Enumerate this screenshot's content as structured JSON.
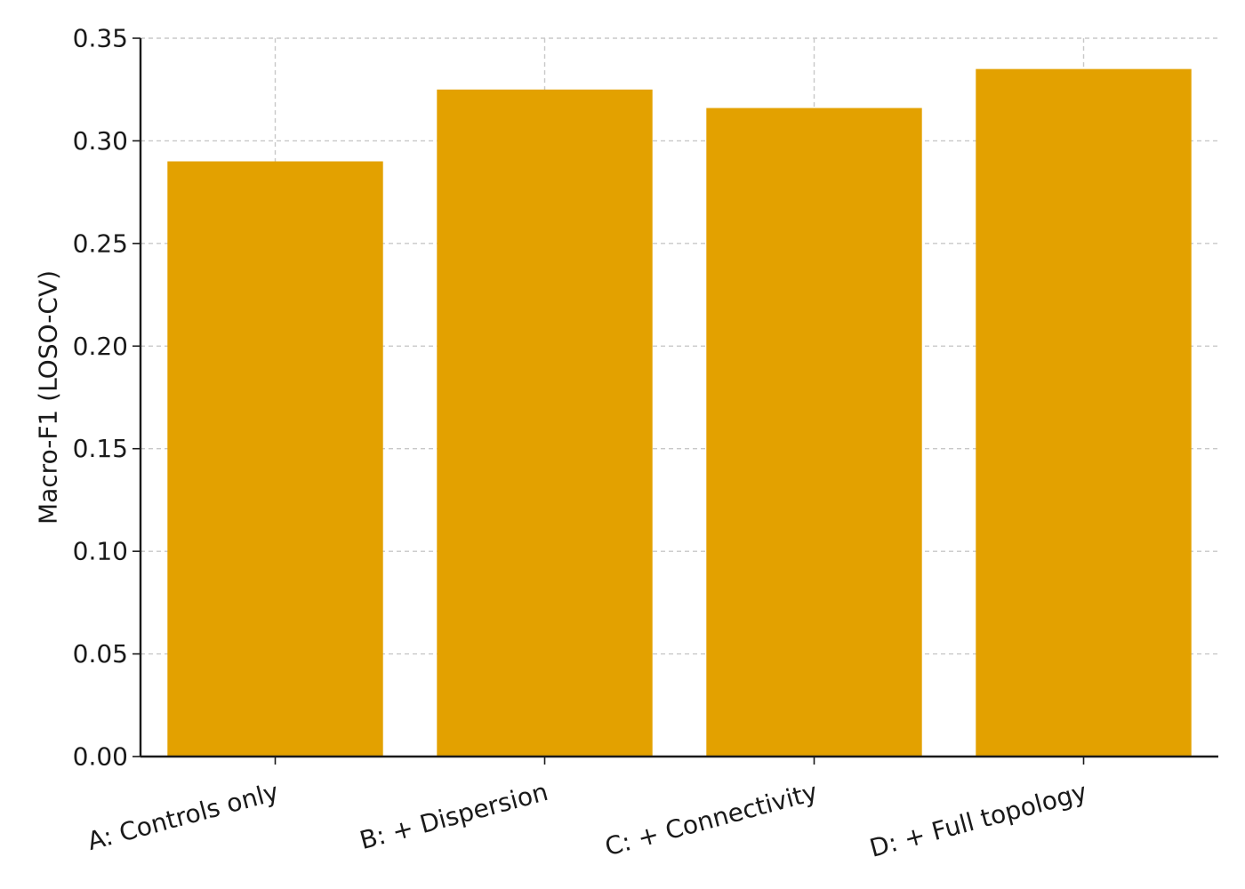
{
  "chart_data": {
    "type": "bar",
    "categories": [
      "A: Controls only",
      "B: + Dispersion",
      "C: + Connectivity",
      "D: + Full topology"
    ],
    "values": [
      0.29,
      0.325,
      0.316,
      0.335
    ],
    "title": "",
    "xlabel": "",
    "ylabel": "Macro-F1 (LOSO-CV)",
    "ylim": [
      0,
      0.35
    ],
    "yticks": [
      "0.00",
      "0.05",
      "0.10",
      "0.15",
      "0.20",
      "0.25",
      "0.30",
      "0.35"
    ],
    "grid": true,
    "bar_color": "#E3A100",
    "xtick_rotation_deg": 15
  }
}
